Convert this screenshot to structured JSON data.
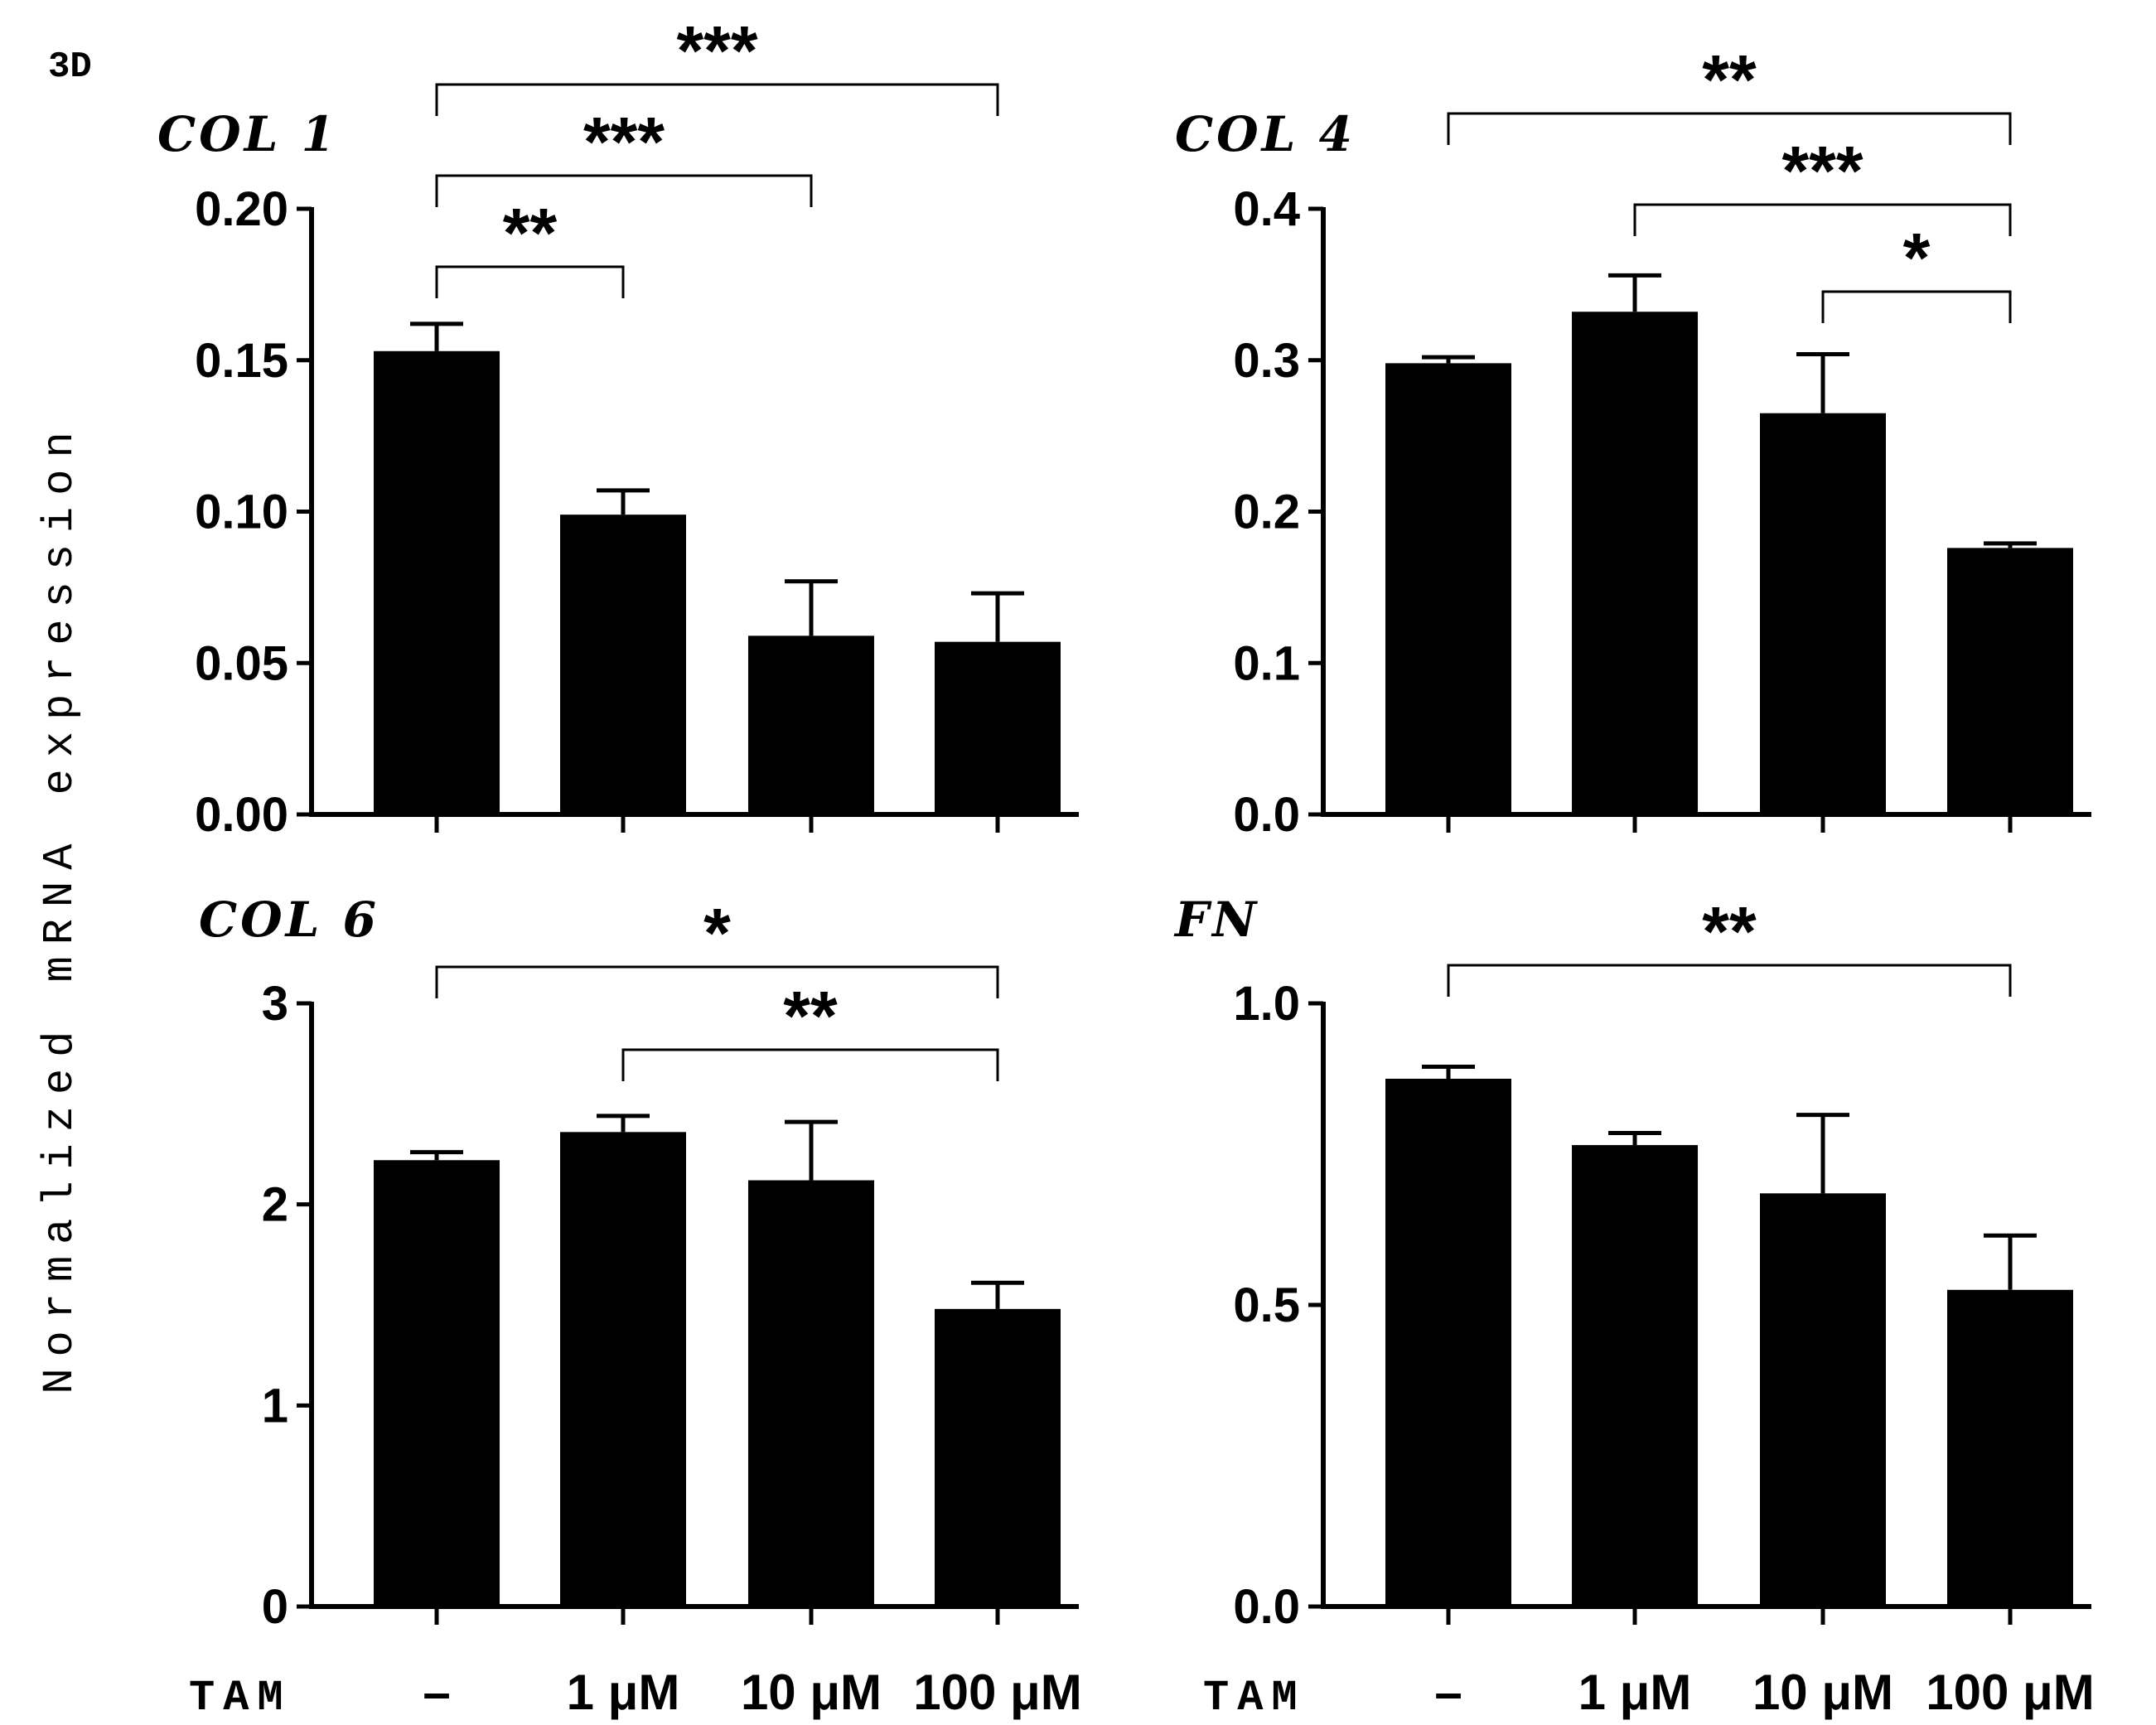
{
  "panel_label": "3D",
  "y_axis_label": "Normalized mRNA expression",
  "x_group_label": "TAM",
  "chart_data": [
    {
      "type": "bar",
      "title": "COL 1",
      "categories": [
        "–",
        "1 μM",
        "10 μM",
        "100 μM"
      ],
      "values": [
        0.153,
        0.099,
        0.059,
        0.057
      ],
      "errors": [
        0.009,
        0.008,
        0.018,
        0.016
      ],
      "ylim": [
        0,
        0.2
      ],
      "yticks": [
        "0.00",
        "0.05",
        "0.10",
        "0.15",
        "0.20"
      ],
      "significance": [
        {
          "from": 0,
          "to": 3,
          "label": "***"
        },
        {
          "from": 0,
          "to": 2,
          "label": "***"
        },
        {
          "from": 0,
          "to": 1,
          "label": "**"
        }
      ]
    },
    {
      "type": "bar",
      "title": "COL 4",
      "categories": [
        "–",
        "1 μM",
        "10 μM",
        "100 μM"
      ],
      "values": [
        0.298,
        0.332,
        0.265,
        0.176
      ],
      "errors": [
        0.004,
        0.024,
        0.039,
        0.003
      ],
      "ylim": [
        0,
        0.4
      ],
      "yticks": [
        "0.0",
        "0.1",
        "0.2",
        "0.3",
        "0.4"
      ],
      "significance": [
        {
          "from": 0,
          "to": 3,
          "label": "**"
        },
        {
          "from": 1,
          "to": 3,
          "label": "***"
        },
        {
          "from": 2,
          "to": 3,
          "label": "*"
        }
      ]
    },
    {
      "type": "bar",
      "title": "COL 6",
      "categories": [
        "–",
        "1 μM",
        "10 μM",
        "100 μM"
      ],
      "values": [
        2.22,
        2.36,
        2.12,
        1.48
      ],
      "errors": [
        0.04,
        0.08,
        0.29,
        0.13
      ],
      "ylim": [
        0,
        3
      ],
      "yticks": [
        "0",
        "1",
        "2",
        "3"
      ],
      "significance": [
        {
          "from": 0,
          "to": 3,
          "label": "*"
        },
        {
          "from": 1,
          "to": 3,
          "label": "**"
        }
      ]
    },
    {
      "type": "bar",
      "title": "FN",
      "categories": [
        "–",
        "1 μM",
        "10 μM",
        "100 μM"
      ],
      "values": [
        0.875,
        0.765,
        0.685,
        0.525
      ],
      "errors": [
        0.02,
        0.02,
        0.13,
        0.09
      ],
      "ylim": [
        0,
        1.0
      ],
      "yticks": [
        "0.0",
        "0.5",
        "1.0"
      ],
      "significance": [
        {
          "from": 0,
          "to": 3,
          "label": "**"
        }
      ]
    }
  ]
}
